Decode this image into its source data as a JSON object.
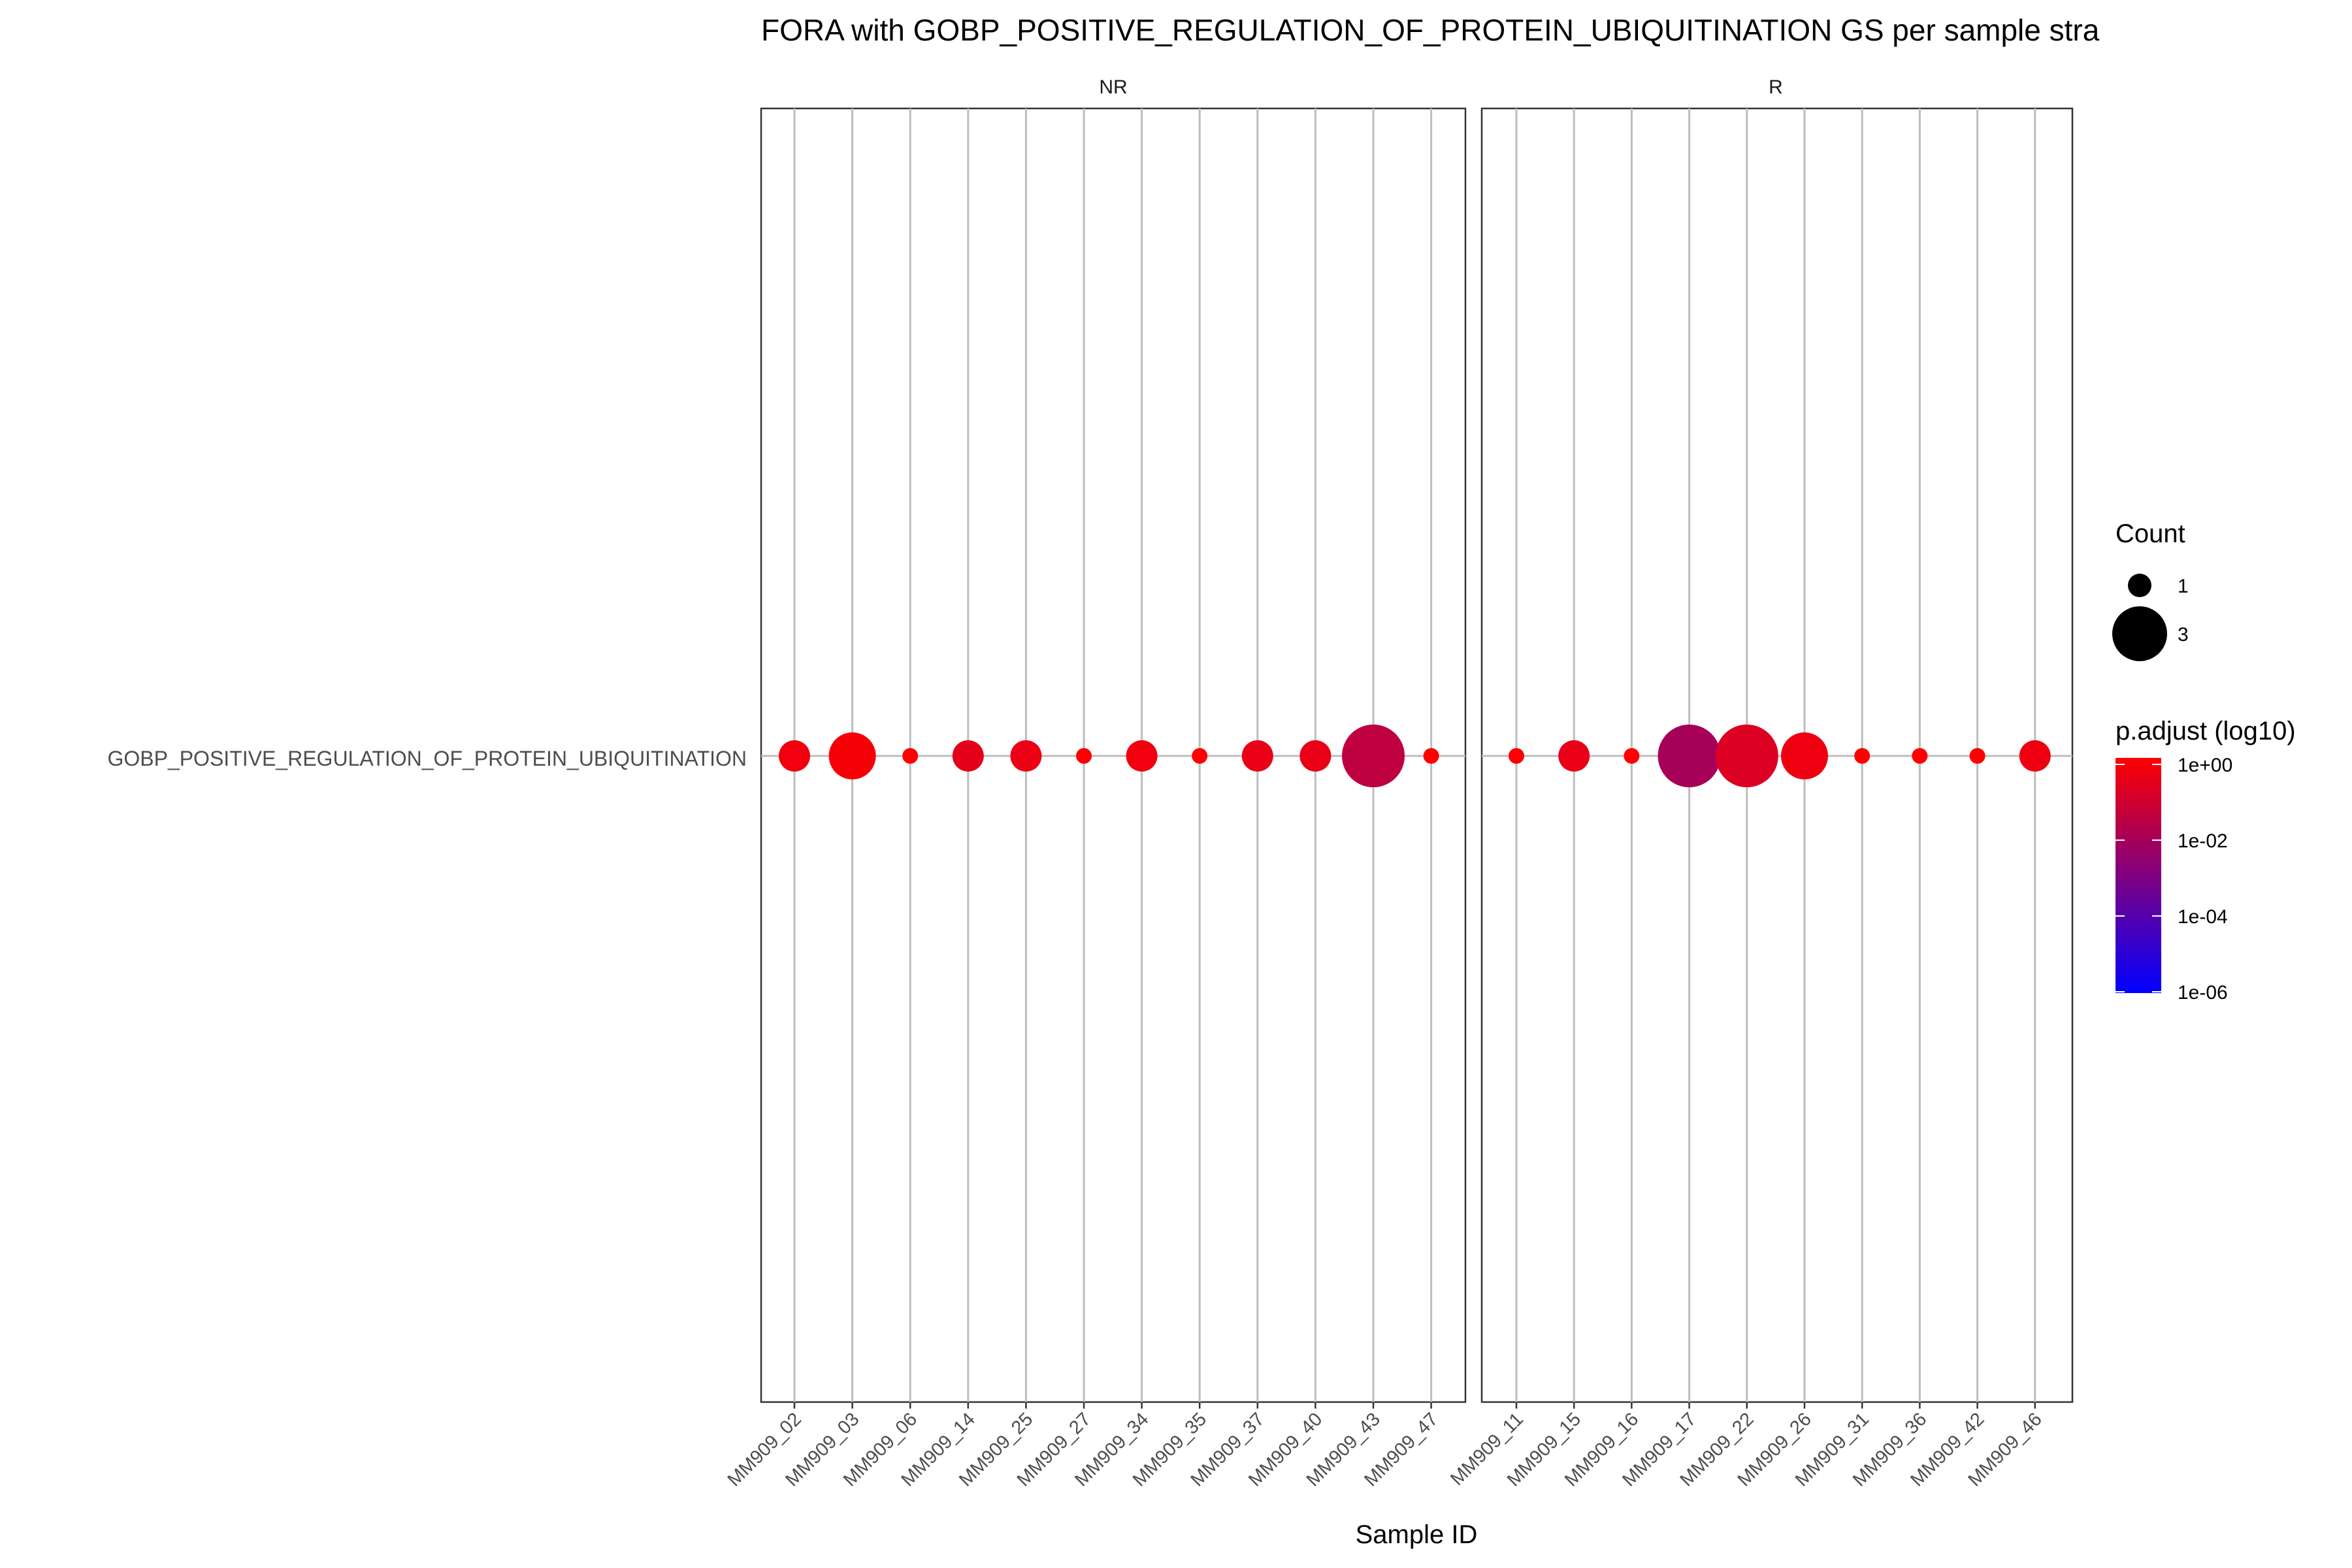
{
  "chart_data": {
    "type": "scatter",
    "title": "FORA with GOBP_POSITIVE_REGULATION_OF_PROTEIN_UBIQUITINATION GS per sample stra",
    "xlabel": "Sample ID",
    "ylabel": "",
    "y_categories": [
      "GOBP_POSITIVE_REGULATION_OF_PROTEIN_UBIQUITINATION"
    ],
    "grid": true,
    "panels": [
      {
        "label": "NR",
        "samples": [
          "MM909_02",
          "MM909_03",
          "MM909_06",
          "MM909_14",
          "MM909_25",
          "MM909_27",
          "MM909_34",
          "MM909_35",
          "MM909_37",
          "MM909_40",
          "MM909_43",
          "MM909_47"
        ],
        "points": [
          {
            "x": "MM909_02",
            "count": 2,
            "p_adjust": 0.5
          },
          {
            "x": "MM909_03",
            "count": 3,
            "p_adjust": 0.7
          },
          {
            "x": "MM909_06",
            "count": 1,
            "p_adjust": 1.0
          },
          {
            "x": "MM909_14",
            "count": 2,
            "p_adjust": 0.25
          },
          {
            "x": "MM909_25",
            "count": 2,
            "p_adjust": 0.35
          },
          {
            "x": "MM909_27",
            "count": 1,
            "p_adjust": 1.0
          },
          {
            "x": "MM909_34",
            "count": 2,
            "p_adjust": 0.5
          },
          {
            "x": "MM909_35",
            "count": 1,
            "p_adjust": 1.0
          },
          {
            "x": "MM909_37",
            "count": 2,
            "p_adjust": 0.3
          },
          {
            "x": "MM909_40",
            "count": 2,
            "p_adjust": 0.3
          },
          {
            "x": "MM909_43",
            "count": 4,
            "p_adjust": 0.03
          },
          {
            "x": "MM909_47",
            "count": 1,
            "p_adjust": 1.0
          }
        ]
      },
      {
        "label": "R",
        "samples": [
          "MM909_11",
          "MM909_15",
          "MM909_16",
          "MM909_17",
          "MM909_22",
          "MM909_26",
          "MM909_31",
          "MM909_36",
          "MM909_42",
          "MM909_46"
        ],
        "points": [
          {
            "x": "MM909_11",
            "count": 1,
            "p_adjust": 1.0
          },
          {
            "x": "MM909_15",
            "count": 2,
            "p_adjust": 0.3
          },
          {
            "x": "MM909_16",
            "count": 1,
            "p_adjust": 1.0
          },
          {
            "x": "MM909_17",
            "count": 4,
            "p_adjust": 0.008
          },
          {
            "x": "MM909_22",
            "count": 4,
            "p_adjust": 0.15
          },
          {
            "x": "MM909_26",
            "count": 3,
            "p_adjust": 0.4
          },
          {
            "x": "MM909_31",
            "count": 1,
            "p_adjust": 1.0
          },
          {
            "x": "MM909_36",
            "count": 1,
            "p_adjust": 1.0
          },
          {
            "x": "MM909_42",
            "count": 1,
            "p_adjust": 1.0
          },
          {
            "x": "MM909_46",
            "count": 2,
            "p_adjust": 0.4
          }
        ]
      }
    ],
    "legend": {
      "size": {
        "title": "Count",
        "entries": [
          {
            "label": "1",
            "value": 1
          },
          {
            "label": "3",
            "value": 3
          }
        ]
      },
      "color": {
        "title": "p.adjust (log10)",
        "scale": "log10",
        "range": [
          1e-06,
          1
        ],
        "low_color": "#0000ff",
        "high_color": "#ff0000",
        "ticks": [
          {
            "label": "1e+00",
            "value": 1
          },
          {
            "label": "1e-02",
            "value": 0.01
          },
          {
            "label": "1e-04",
            "value": 0.0001
          },
          {
            "label": "1e-06",
            "value": 1e-06
          }
        ]
      },
      "placement": "right"
    }
  }
}
